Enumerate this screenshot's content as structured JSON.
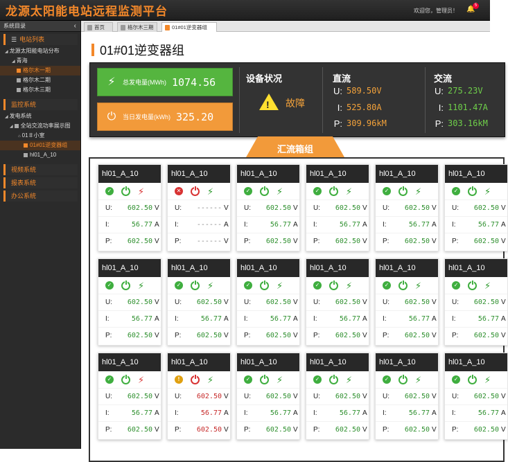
{
  "header": {
    "title": "龙源太阳能电站远程监测平台",
    "greeting": "欢迎您，管理员！",
    "badge": "5"
  },
  "sidebar": {
    "title": "系统目录",
    "toggle": "‹",
    "groups": {
      "station_list": "电站列表",
      "monitor": "监控系统",
      "video": "视频系统",
      "report": "报表系统",
      "office": "办公系统"
    },
    "items": {
      "distribution": "龙源太阳能电站分布",
      "qinghai": "青海",
      "geermu1": "格尔木一期",
      "geermu2": "格尔木二期",
      "geermu3": "格尔木三期",
      "power_system": "发电系统",
      "ac_display": "全站交流功率展示图",
      "small_room": "01＃小室",
      "inverter_group": "01#01逆变器组",
      "hl_item": "hl01_A_10"
    }
  },
  "tabs": [
    {
      "label": "首页",
      "active": false
    },
    {
      "label": "格尔木三期",
      "active": false
    },
    {
      "label": "01#01逆变器组",
      "active": true
    }
  ],
  "page": {
    "title": "01#01逆变器组"
  },
  "summary": {
    "total_label": "总发电量(MWh)",
    "total_value": "1074.56",
    "daily_label": "当日发电量(kWh)",
    "daily_value": "325.20",
    "status_title": "设备状况",
    "status_value": "故障",
    "dc": {
      "title": "直流",
      "u_label": "U:",
      "u": "589.50V",
      "i_label": "I:",
      "i": "525.80A",
      "p_label": "P:",
      "p": "309.96kM"
    },
    "ac": {
      "title": "交流",
      "u_label": "U:",
      "u": "275.23V",
      "i_label": "I:",
      "i": "1101.47A",
      "p_label": "P:",
      "p": "303.16kM"
    }
  },
  "section": {
    "title": "汇流箱组"
  },
  "cards": [
    {
      "name": "hl01_A_10",
      "status": "ok",
      "power": "on",
      "bolt": "red",
      "u": "602.50",
      "i": "56.77",
      "p": "602.50",
      "u_unit": "V",
      "i_unit": "A",
      "p_unit": "V",
      "tone": "green"
    },
    {
      "name": "hl01_A_10",
      "status": "err",
      "power": "off",
      "bolt": "green",
      "u": "------",
      "i": "------",
      "p": "------",
      "u_unit": "V",
      "i_unit": "A",
      "p_unit": "V",
      "tone": "dash"
    },
    {
      "name": "hl01_A_10",
      "status": "ok",
      "power": "on",
      "bolt": "green",
      "u": "602.50",
      "i": "56.77",
      "p": "602.50",
      "u_unit": "V",
      "i_unit": "A",
      "p_unit": "V",
      "tone": "green"
    },
    {
      "name": "hl01_A_10",
      "status": "ok",
      "power": "on",
      "bolt": "green",
      "u": "602.50",
      "i": "56.77",
      "p": "602.50",
      "u_unit": "V",
      "i_unit": "A",
      "p_unit": "V",
      "tone": "green"
    },
    {
      "name": "hl01_A_10",
      "status": "ok",
      "power": "on",
      "bolt": "green",
      "u": "602.50",
      "i": "56.77",
      "p": "602.50",
      "u_unit": "V",
      "i_unit": "A",
      "p_unit": "V",
      "tone": "green"
    },
    {
      "name": "hl01_A_10",
      "status": "ok",
      "power": "on",
      "bolt": "green",
      "u": "602.50",
      "i": "56.77",
      "p": "602.50",
      "u_unit": "V",
      "i_unit": "A",
      "p_unit": "V",
      "tone": "green"
    },
    {
      "name": "hl01_A_10",
      "status": "ok",
      "power": "on",
      "bolt": "green",
      "u": "602.50",
      "i": "56.77",
      "p": "602.50",
      "u_unit": "V",
      "i_unit": "A",
      "p_unit": "V",
      "tone": "green"
    },
    {
      "name": "hl01_A_10",
      "status": "ok",
      "power": "on",
      "bolt": "green",
      "u": "602.50",
      "i": "56.77",
      "p": "602.50",
      "u_unit": "V",
      "i_unit": "A",
      "p_unit": "V",
      "tone": "green"
    },
    {
      "name": "hl01_A_10",
      "status": "ok",
      "power": "on",
      "bolt": "green",
      "u": "602.50",
      "i": "56.77",
      "p": "602.50",
      "u_unit": "V",
      "i_unit": "A",
      "p_unit": "V",
      "tone": "green"
    },
    {
      "name": "hl01_A_10",
      "status": "ok",
      "power": "on",
      "bolt": "green",
      "u": "602.50",
      "i": "56.77",
      "p": "602.50",
      "u_unit": "V",
      "i_unit": "A",
      "p_unit": "V",
      "tone": "green"
    },
    {
      "name": "hl01_A_10",
      "status": "ok",
      "power": "on",
      "bolt": "green",
      "u": "602.50",
      "i": "56.77",
      "p": "602.50",
      "u_unit": "V",
      "i_unit": "A",
      "p_unit": "V",
      "tone": "green"
    },
    {
      "name": "hl01_A_10",
      "status": "ok",
      "power": "on",
      "bolt": "green",
      "u": "602.50",
      "i": "56.77",
      "p": "602.50",
      "u_unit": "V",
      "i_unit": "A",
      "p_unit": "V",
      "tone": "green"
    },
    {
      "name": "hl01_A_10",
      "status": "ok",
      "power": "on",
      "bolt": "red",
      "u": "602.50",
      "i": "56.77",
      "p": "602.50",
      "u_unit": "V",
      "i_unit": "A",
      "p_unit": "V",
      "tone": "green"
    },
    {
      "name": "hl01_A_10",
      "status": "warn",
      "power": "off",
      "bolt": "green",
      "u": "602.50",
      "i": "56.77",
      "p": "602.50",
      "u_unit": "V",
      "i_unit": "A",
      "p_unit": "V",
      "tone": "red"
    },
    {
      "name": "hl01_A_10",
      "status": "ok",
      "power": "on",
      "bolt": "green",
      "u": "602.50",
      "i": "56.77",
      "p": "602.50",
      "u_unit": "V",
      "i_unit": "A",
      "p_unit": "V",
      "tone": "green"
    },
    {
      "name": "hl01_A_10",
      "status": "ok",
      "power": "on",
      "bolt": "green",
      "u": "602.50",
      "i": "56.77",
      "p": "602.50",
      "u_unit": "V",
      "i_unit": "A",
      "p_unit": "V",
      "tone": "green"
    },
    {
      "name": "hl01_A_10",
      "status": "ok",
      "power": "on",
      "bolt": "green",
      "u": "602.50",
      "i": "56.77",
      "p": "602.50",
      "u_unit": "V",
      "i_unit": "A",
      "p_unit": "V",
      "tone": "green"
    },
    {
      "name": "hl01_A_10",
      "status": "ok",
      "power": "on",
      "bolt": "green",
      "u": "602.50",
      "i": "56.77",
      "p": "602.50",
      "u_unit": "V",
      "i_unit": "A",
      "p_unit": "V",
      "tone": "green"
    }
  ],
  "metric_labels": {
    "u": "U:",
    "i": "I:",
    "p": "P:"
  },
  "colors": {
    "accent": "#f3882a",
    "ok": "#3fae3f",
    "fault": "#d83333",
    "total_box": "#55b53f",
    "daily_box": "#f29a3a"
  },
  "icons": {
    "menu": "list-icon",
    "tower": "power-tower-icon",
    "plug": "plug-icon",
    "warning": "warning-icon",
    "check": "check-circle-icon",
    "power": "power-icon",
    "bolt": "lightning-icon",
    "bell": "bell-icon"
  }
}
